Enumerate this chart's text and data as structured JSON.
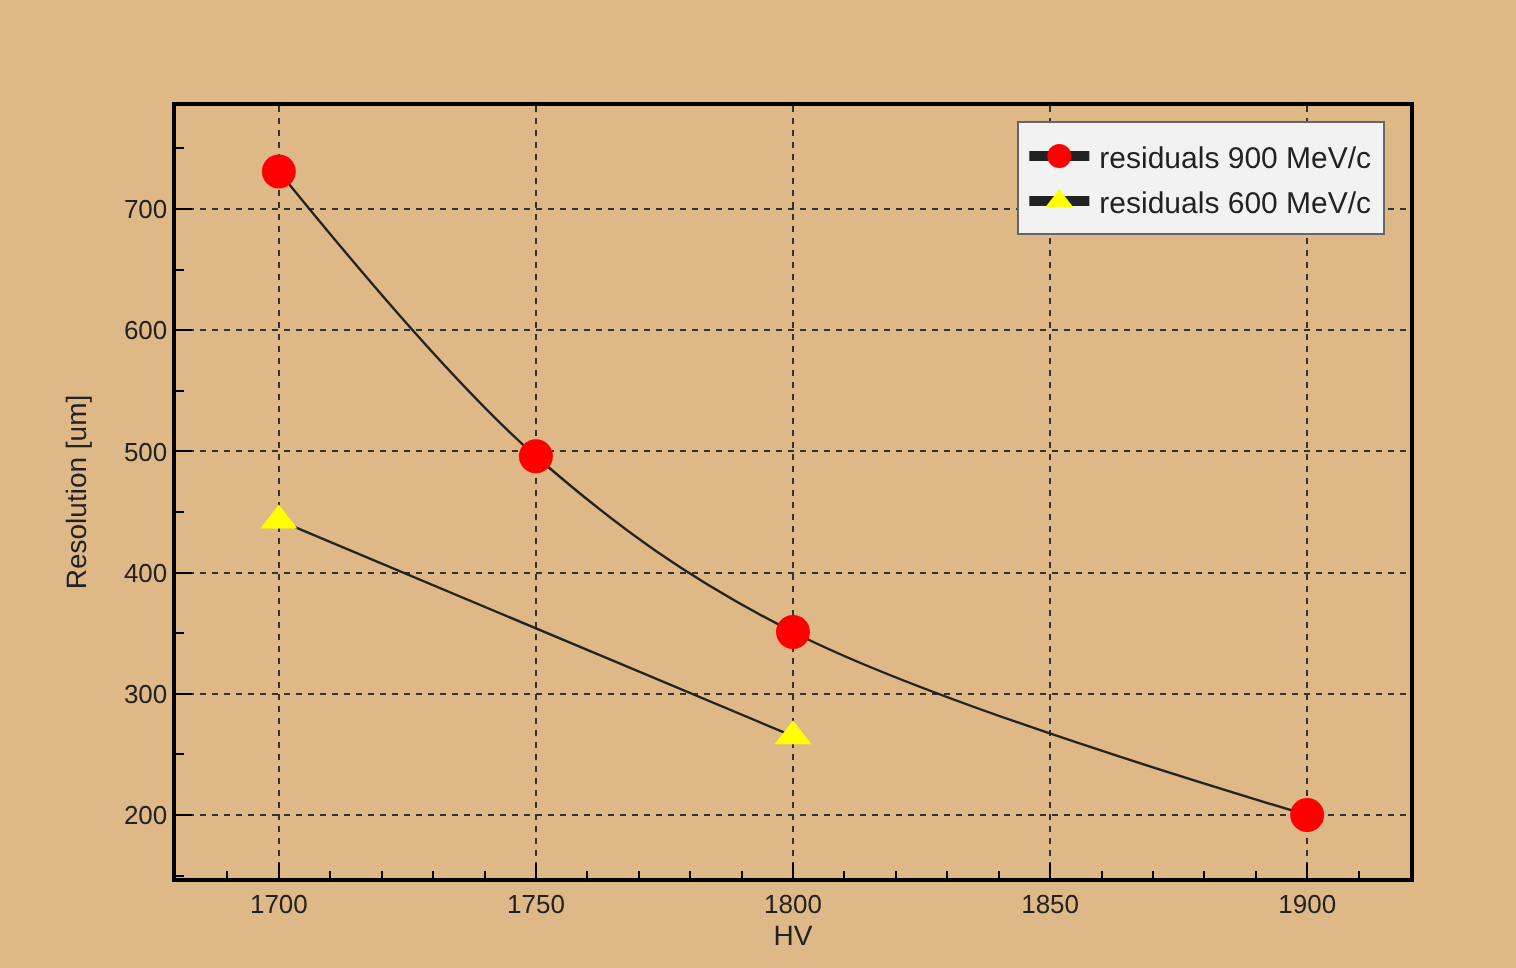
{
  "chart_data": {
    "type": "line",
    "xlabel": "HV",
    "ylabel": "Resolution [um]",
    "xlim": [
      1680,
      1920
    ],
    "xticks": [
      1700,
      1750,
      1800,
      1850,
      1900
    ],
    "ylim": [
      148,
      785
    ],
    "yticks": [
      200,
      300,
      400,
      500,
      600,
      700
    ],
    "grid": true,
    "legend": "top right",
    "series": [
      {
        "name": "residuals 900 MeV/c",
        "color": "#ff0000",
        "marker": "circle",
        "x": [
          1700,
          1750,
          1800,
          1900
        ],
        "values": [
          731,
          496,
          351,
          200
        ]
      },
      {
        "name": "residuals 600 MeV/c",
        "color": "#ffff00",
        "marker": "triangle",
        "x": [
          1700,
          1800
        ],
        "values": [
          443,
          265
        ]
      }
    ]
  }
}
